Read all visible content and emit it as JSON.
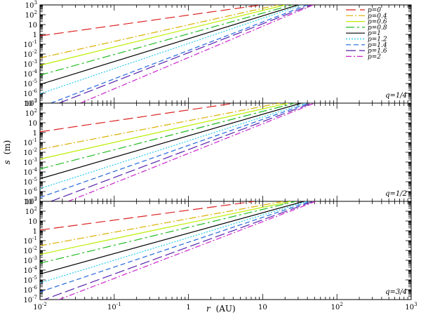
{
  "chart_data": {
    "type": "line",
    "xlabel": "r",
    "xlabel_unit": "(AU)",
    "ylabel": "s",
    "ylabel_unit": "(m)",
    "xscale": "log",
    "yscale": "log",
    "xlim": [
      0.01,
      1000
    ],
    "ylim": [
      1e-07,
      1000
    ],
    "x_ticks": [
      {
        "base": "10",
        "exp": "-2"
      },
      {
        "base": "10",
        "exp": "-1"
      },
      {
        "base": "1",
        "exp": ""
      },
      {
        "base": "10",
        "exp": ""
      },
      {
        "base": "10",
        "exp": "2"
      },
      {
        "base": "10",
        "exp": "3"
      }
    ],
    "y_ticks": [
      {
        "base": "10",
        "exp": "-7"
      },
      {
        "base": "10",
        "exp": "-6"
      },
      {
        "base": "10",
        "exp": "-5"
      },
      {
        "base": "10",
        "exp": "-4"
      },
      {
        "base": "10",
        "exp": "-3"
      },
      {
        "base": "10",
        "exp": "-2"
      },
      {
        "base": "10",
        "exp": "-1"
      },
      {
        "base": "1",
        "exp": ""
      },
      {
        "base": "10",
        "exp": ""
      },
      {
        "base": "10",
        "exp": "2"
      },
      {
        "base": "10",
        "exp": "3"
      }
    ],
    "legend": "top-right",
    "grid": false,
    "series_styles": [
      {
        "name": "p=0",
        "color": "#dd2222",
        "dash": "14,6"
      },
      {
        "name": "p=0.4",
        "color": "#ddb000",
        "dash": "10,3,2,3"
      },
      {
        "name": "p=0.6",
        "color": "#bbee00",
        "dash": ""
      },
      {
        "name": "p=0.8",
        "color": "#22bb22",
        "dash": "12,4,3,4"
      },
      {
        "name": "p=1",
        "color": "#000000",
        "dash": ""
      },
      {
        "name": "p=1.2",
        "color": "#22ccee",
        "dash": "2,2"
      },
      {
        "name": "p=1.4",
        "color": "#2266dd",
        "dash": "7,4"
      },
      {
        "name": "p=1.6",
        "color": "#5522aa",
        "dash": "14,5"
      },
      {
        "name": "p=2",
        "color": "#cc22cc",
        "dash": "8,3,2,3"
      }
    ],
    "panels": [
      {
        "label": "q=1/4",
        "series": [
          {
            "name": "p=0",
            "x": [
              0.01,
              9.6
            ],
            "y": [
              0.7,
              1000
            ]
          },
          {
            "name": "p=0.4",
            "x": [
              0.01,
              16
            ],
            "y": [
              0.004,
              1000
            ]
          },
          {
            "name": "p=0.6",
            "x": [
              0.01,
              20
            ],
            "y": [
              0.0007,
              1000
            ]
          },
          {
            "name": "p=0.8",
            "x": [
              0.01,
              25
            ],
            "y": [
              7e-05,
              1000
            ]
          },
          {
            "name": "p=1",
            "x": [
              0.01,
              30
            ],
            "y": [
              8e-06,
              1000
            ]
          },
          {
            "name": "p=1.2",
            "x": [
              0.01,
              34
            ],
            "y": [
              9e-07,
              1000
            ]
          },
          {
            "name": "p=1.4",
            "x": [
              0.014,
              40
            ],
            "y": [
              1e-07,
              1000
            ]
          },
          {
            "name": "p=1.6",
            "x": [
              0.018,
              45
            ],
            "y": [
              1e-07,
              1000
            ]
          },
          {
            "name": "p=2",
            "x": [
              0.035,
              48
            ],
            "y": [
              1e-07,
              1000
            ]
          }
        ]
      },
      {
        "label": "q=1/2",
        "series": [
          {
            "name": "p=0",
            "x": [
              0.01,
              4.2
            ],
            "y": [
              1.2,
              1000
            ]
          },
          {
            "name": "p=0.4",
            "x": [
              0.01,
              17
            ],
            "y": [
              0.02,
              1000
            ]
          },
          {
            "name": "p=0.6",
            "x": [
              0.01,
              22
            ],
            "y": [
              0.002,
              1000
            ]
          },
          {
            "name": "p=0.8",
            "x": [
              0.01,
              27
            ],
            "y": [
              0.0002,
              1000
            ]
          },
          {
            "name": "p=1",
            "x": [
              0.01,
              33
            ],
            "y": [
              2e-05,
              1000
            ]
          },
          {
            "name": "p=1.2",
            "x": [
              0.01,
              38
            ],
            "y": [
              2e-06,
              1000
            ]
          },
          {
            "name": "p=1.4",
            "x": [
              0.01,
              42
            ],
            "y": [
              2.5e-07,
              1000
            ]
          },
          {
            "name": "p=1.6",
            "x": [
              0.014,
              46
            ],
            "y": [
              1e-07,
              1000
            ]
          },
          {
            "name": "p=2",
            "x": [
              0.024,
              50
            ],
            "y": [
              1e-07,
              1000
            ]
          }
        ]
      },
      {
        "label": "q=3/4",
        "series": [
          {
            "name": "p=0",
            "x": [
              0.01,
              7.8
            ],
            "y": [
              1.2,
              1000
            ]
          },
          {
            "name": "p=0.4",
            "x": [
              0.01,
              19
            ],
            "y": [
              0.03,
              1000
            ]
          },
          {
            "name": "p=0.6",
            "x": [
              0.01,
              24
            ],
            "y": [
              0.004,
              1000
            ]
          },
          {
            "name": "p=0.8",
            "x": [
              0.01,
              28
            ],
            "y": [
              0.0005,
              1000
            ]
          },
          {
            "name": "p=1",
            "x": [
              0.01,
              36
            ],
            "y": [
              4e-05,
              1000
            ]
          },
          {
            "name": "p=1.2",
            "x": [
              0.01,
              40
            ],
            "y": [
              5e-06,
              1000
            ]
          },
          {
            "name": "p=1.4",
            "x": [
              0.01,
              44
            ],
            "y": [
              6e-07,
              1000
            ]
          },
          {
            "name": "p=1.6",
            "x": [
              0.01,
              48
            ],
            "y": [
              7e-08,
              1000
            ]
          },
          {
            "name": "p=2",
            "x": [
              0.018,
              52
            ],
            "y": [
              1e-07,
              1000
            ]
          }
        ]
      }
    ]
  }
}
